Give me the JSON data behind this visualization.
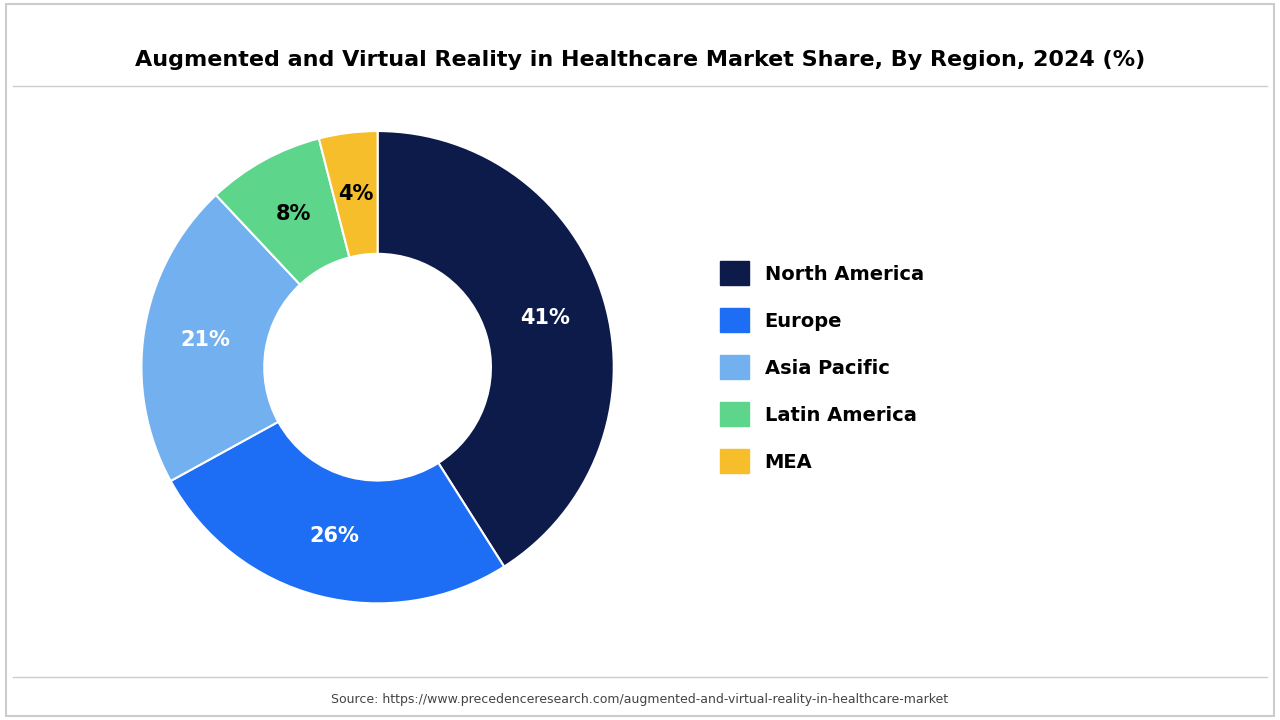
{
  "title": "Augmented and Virtual Reality in Healthcare Market Share, By Region, 2024 (%)",
  "source_text": "Source: https://www.precedenceresearch.com/augmented-and-virtual-reality-in-healthcare-market",
  "labels": [
    "North America",
    "Europe",
    "Asia Pacific",
    "Latin America",
    "MEA"
  ],
  "values": [
    41,
    26,
    21,
    8,
    4
  ],
  "colors": [
    "#0d1b4b",
    "#1e6ef5",
    "#72b0f0",
    "#5dd68c",
    "#f5be2a"
  ],
  "pct_colors": [
    "white",
    "white",
    "white",
    "black",
    "black"
  ],
  "wedge_label_fontsize": 15,
  "legend_fontsize": 14,
  "title_fontsize": 16,
  "bg_color": "#ffffff",
  "border_color": "#cccccc"
}
